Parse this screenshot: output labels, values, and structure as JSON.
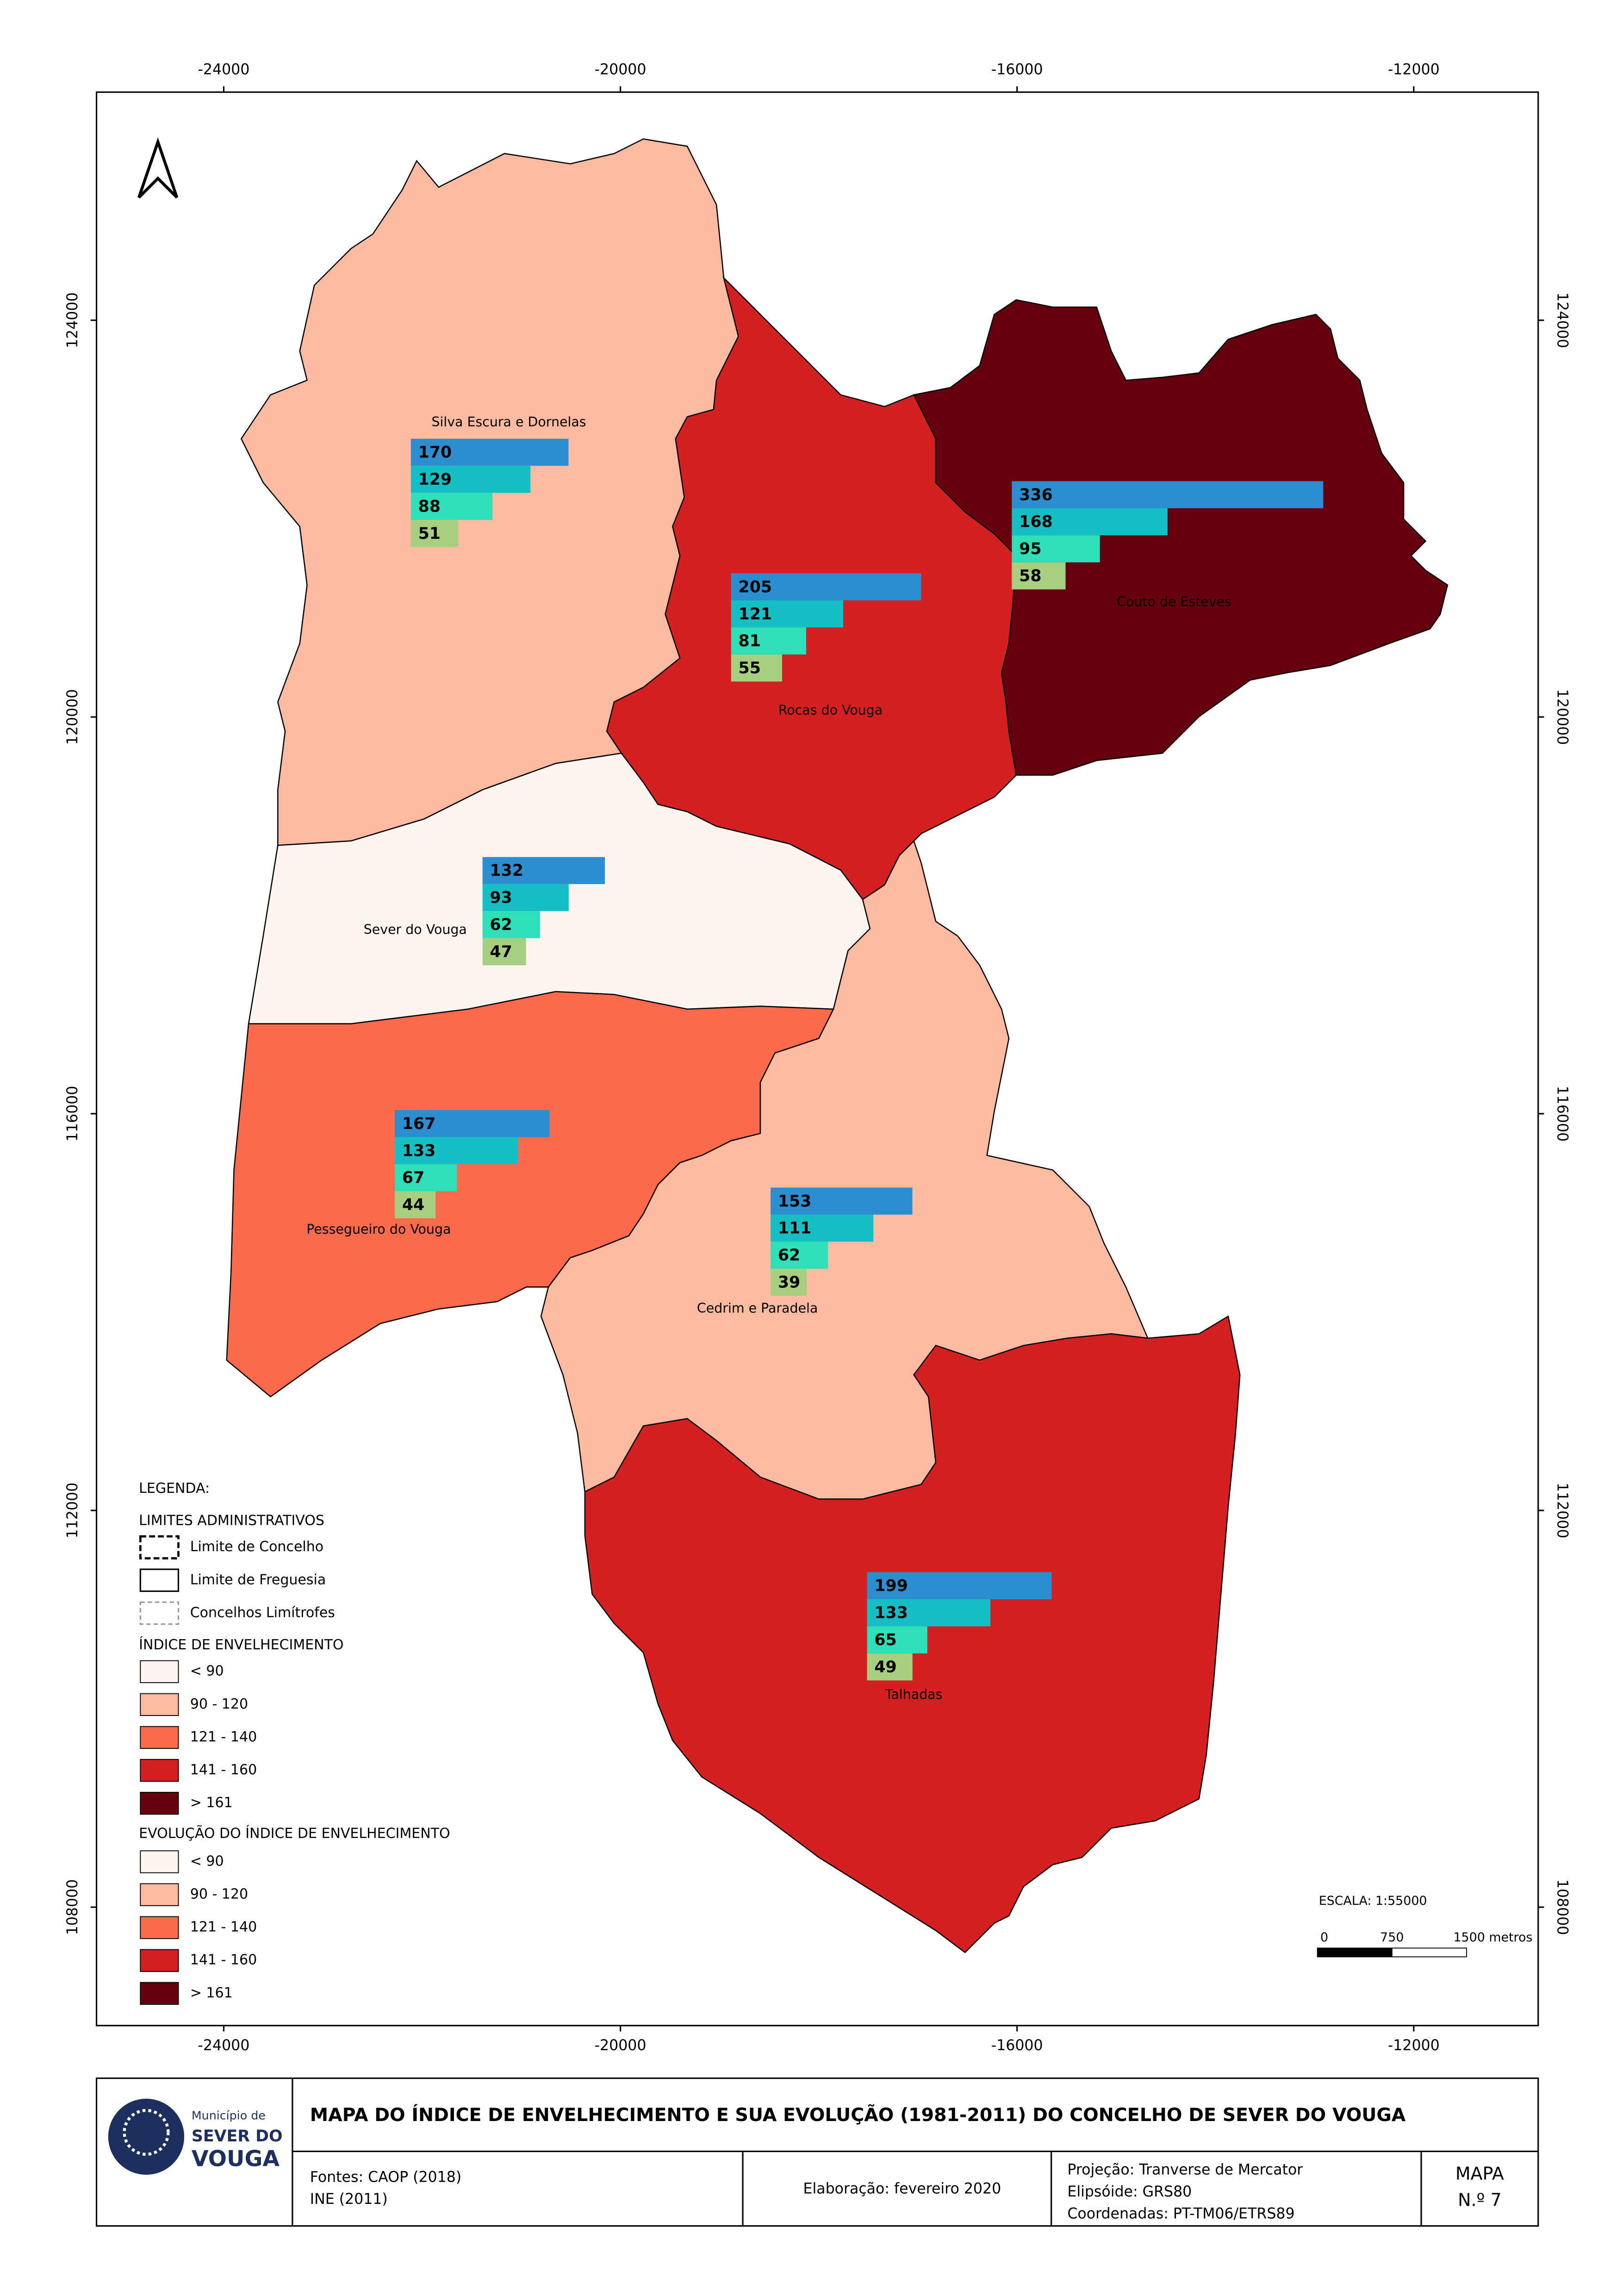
{
  "map": {
    "xlim": [
      -25283,
      -10745
    ],
    "ylim": [
      106806,
      126300
    ],
    "xticks": [
      -24000,
      -20000,
      -16000,
      -12000
    ],
    "yticks": [
      124000,
      120000,
      116000,
      112000,
      108000
    ]
  },
  "bar_colors": [
    "#2b8fcf",
    "#14c0c4",
    "#2ee0b8",
    "#a6cf80"
  ],
  "parishes": [
    {
      "name": "Silva Escura e Dornelas",
      "fill": "#fcbba1",
      "values": [
        170,
        129,
        88,
        51
      ]
    },
    {
      "name": "Rocas do Vouga",
      "fill": "#d42020",
      "values": [
        205,
        121,
        81,
        55
      ]
    },
    {
      "name": "Couto de Esteves",
      "fill": "#67000d",
      "values": [
        336,
        168,
        95,
        58
      ]
    },
    {
      "name": "Sever do Vouga",
      "fill": "#fff5f0",
      "values": [
        132,
        93,
        62,
        47
      ]
    },
    {
      "name": "Pessegueiro do Vouga",
      "fill": "#fb6a4a",
      "values": [
        167,
        133,
        67,
        44
      ]
    },
    {
      "name": "Cedrim e Paradela",
      "fill": "#fcbba1",
      "values": [
        153,
        111,
        62,
        39
      ]
    },
    {
      "name": "Talhadas",
      "fill": "#d42020",
      "values": [
        199,
        133,
        65,
        49
      ]
    }
  ],
  "legend": {
    "title": "LEGENDA:",
    "admin_title": "LIMITES ADMINISTRATIVOS",
    "admin_items": [
      "Limite de Concelho",
      "Limite de Freguesia",
      "Concelhos Limítrofes"
    ],
    "index_title": "ÍNDICE DE ENVELHECIMENTO",
    "index_classes": [
      {
        "label": "< 90",
        "color": "#fff5f0"
      },
      {
        "label": "90 - 120",
        "color": "#fcbba1"
      },
      {
        "label": "121 - 140",
        "color": "#fb6a4a"
      },
      {
        "label": "141 - 160",
        "color": "#d42020"
      },
      {
        "label": "> 161",
        "color": "#67000d"
      }
    ],
    "evolution_title": "EVOLUÇÃO DO ÍNDICE DE ENVELHECIMENTO",
    "evolution_classes": [
      {
        "label": "< 90",
        "color": "#fff5f0"
      },
      {
        "label": "90 - 120",
        "color": "#fcbba1"
      },
      {
        "label": "121 - 140",
        "color": "#fb6a4a"
      },
      {
        "label": "141 - 160",
        "color": "#d42020"
      },
      {
        "label": "> 161",
        "color": "#67000d"
      }
    ]
  },
  "scale": {
    "title": "ESCALA: 1:55000",
    "labels": [
      "0",
      "750",
      "1500 metros"
    ]
  },
  "footer": {
    "logo": [
      "Município de",
      "SEVER DO",
      "VOUGA"
    ],
    "title": "MAPA DO ÍNDICE DE ENVELHECIMENTO E SUA EVOLUÇÃO (1981-2011) DO CONCELHO DE SEVER DO VOUGA",
    "sources": [
      "Fontes: CAOP (2018)",
      "INE (2011)"
    ],
    "date": "Elaboração: fevereiro 2020",
    "projection": [
      "Projeção: Tranverse de Mercator",
      "Elipsóide: GRS80",
      "Coordenadas: PT-TM06/ETRS89"
    ],
    "map_id": [
      "MAPA",
      "N.º 7"
    ]
  }
}
